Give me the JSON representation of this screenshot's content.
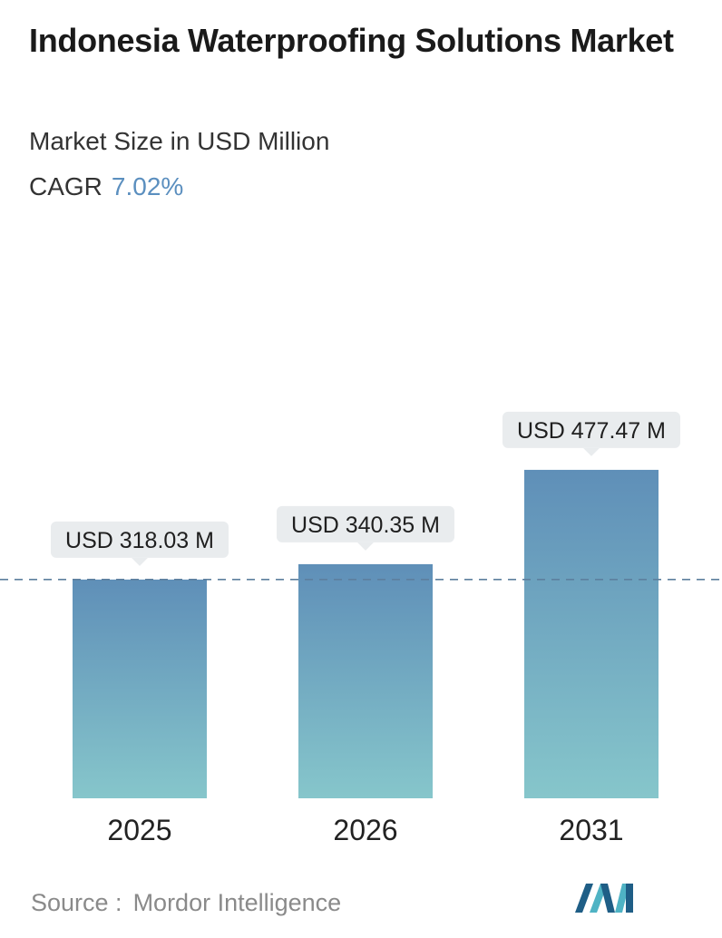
{
  "header": {
    "title": "Indonesia Waterproofing Solutions Market",
    "subtitle": "Market Size in USD Million",
    "cagr_label": "CAGR",
    "cagr_value": "7.02%"
  },
  "chart_data": {
    "type": "bar",
    "title": "Indonesia Waterproofing Solutions Market",
    "subtitle": "Market Size in USD Million",
    "categories": [
      "2025",
      "2026",
      "2031"
    ],
    "values": [
      318.03,
      340.35,
      477.47
    ],
    "data_labels": [
      "USD 318.03 M",
      "USD 340.35 M",
      "USD 477.47 M"
    ],
    "xlabel": "",
    "ylabel": "",
    "grid": false,
    "legend": "none",
    "reference_line": {
      "value": 318.03,
      "style": "dashed"
    }
  },
  "footer": {
    "source_label": "Source :",
    "source_value": "Mordor Intelligence"
  },
  "colors": {
    "bar_top": "#5f8fb8",
    "bar_bottom": "#86c6cb",
    "label_bg": "#e9ecee",
    "dashed_line": "#5d7f9e",
    "cagr_value": "#5b8fbf",
    "logo_dark": "#1f5e86",
    "logo_light": "#4fb3c4"
  }
}
